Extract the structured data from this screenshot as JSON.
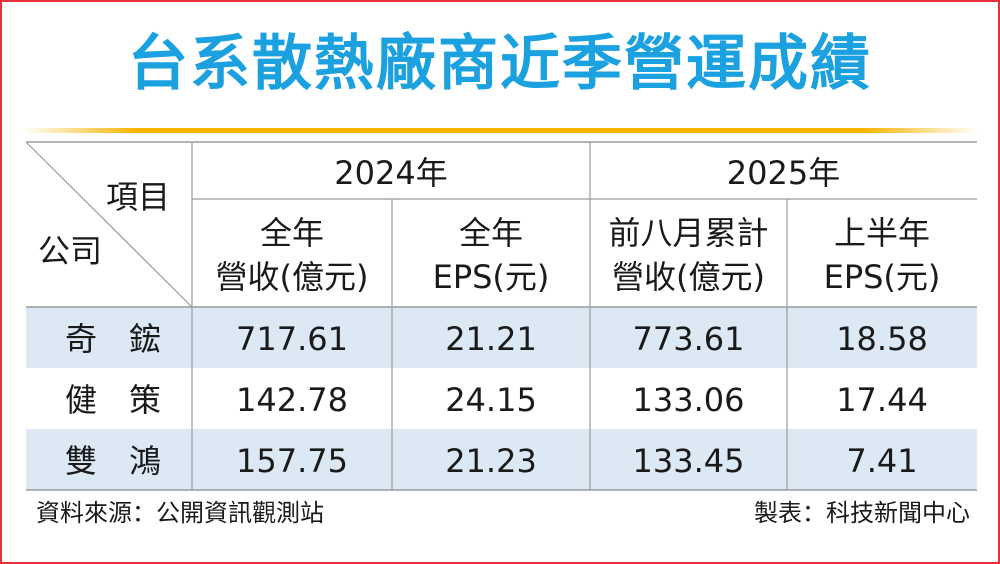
{
  "title": "台系散熱廠商近季營運成績",
  "table": {
    "corner_top": "項目",
    "corner_bottom": "公司",
    "groups": [
      {
        "label": "2024年",
        "columns": [
          {
            "line1": "全年",
            "line2": "營收(億元)"
          },
          {
            "line1": "全年",
            "line2": "EPS(元)"
          }
        ]
      },
      {
        "label": "2025年",
        "columns": [
          {
            "line1": "前八月累計",
            "line2": "營收(億元)"
          },
          {
            "line1": "上半年",
            "line2": "EPS(元)"
          }
        ]
      }
    ],
    "rows": [
      {
        "company": "奇　鋐",
        "values": [
          "717.61",
          "21.21",
          "773.61",
          "18.58"
        ]
      },
      {
        "company": "健　策",
        "values": [
          "142.78",
          "24.15",
          "133.06",
          "17.44"
        ]
      },
      {
        "company": "雙　鴻",
        "values": [
          "157.75",
          "21.23",
          "133.45",
          "7.41"
        ]
      }
    ]
  },
  "chart_data": {
    "type": "table",
    "title": "台系散熱廠商近季營運成績",
    "columns": [
      "2024年 全年營收(億元)",
      "2024年 全年EPS(元)",
      "2025年 前八月累計營收(億元)",
      "2025年 上半年EPS(元)"
    ],
    "rows": [
      {
        "company": "奇鋐",
        "values": [
          717.61,
          21.21,
          773.61,
          18.58
        ]
      },
      {
        "company": "健策",
        "values": [
          142.78,
          24.15,
          133.06,
          17.44
        ]
      },
      {
        "company": "雙鴻",
        "values": [
          157.75,
          21.23,
          133.45,
          7.41
        ]
      }
    ]
  },
  "footer": {
    "source": "資料來源：公開資訊觀測站",
    "made_by": "製表：科技新聞中心"
  },
  "colors": {
    "title": "#1ba1e0",
    "rule": "#f5b400",
    "frame": "#e8303a",
    "row_shade": "#dce9f5",
    "grid": "#9a9a9a"
  }
}
